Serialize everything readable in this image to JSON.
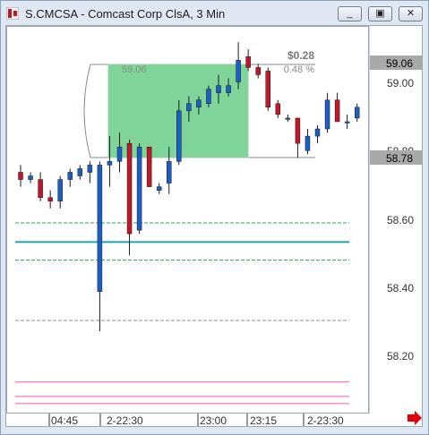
{
  "window": {
    "title": "S.CMCSA - Comcast Corp ClsA, 3 Min",
    "buttons": {
      "minimize": "_",
      "restore": "▣",
      "close": "✕"
    }
  },
  "price_axis": {
    "ticks": [
      "59.00",
      "58.80",
      "58.60",
      "58.40",
      "58.20"
    ],
    "markers": {
      "upper": "59.06",
      "lower": "58.78"
    }
  },
  "time_axis": {
    "ticks": [
      "04:45",
      "2-22:30",
      "23:00",
      "23:15",
      "2-23:30"
    ]
  },
  "measure_tool": {
    "start_price": "59.06",
    "change": "$0.28",
    "change_pct": "0.48 %"
  },
  "colors": {
    "up": "#1c5fc4",
    "down": "#c0172a",
    "measure_fill": "#7fd49a",
    "band_green": "#2ea84f",
    "band_teal": "#1aa7b3",
    "band_pink": "#e85fb1"
  },
  "chart_data": {
    "type": "candlestick",
    "ylim": [
      58.1,
      59.15
    ],
    "candles": [
      {
        "o": 58.76,
        "h": 58.78,
        "l": 58.72,
        "c": 58.74
      },
      {
        "o": 58.74,
        "h": 58.76,
        "l": 58.73,
        "c": 58.75
      },
      {
        "o": 58.74,
        "h": 58.76,
        "l": 58.68,
        "c": 58.69
      },
      {
        "o": 58.69,
        "h": 58.71,
        "l": 58.66,
        "c": 58.68
      },
      {
        "o": 58.68,
        "h": 58.75,
        "l": 58.66,
        "c": 58.74
      },
      {
        "o": 58.74,
        "h": 58.77,
        "l": 58.72,
        "c": 58.76
      },
      {
        "o": 58.75,
        "h": 58.78,
        "l": 58.74,
        "c": 58.77
      },
      {
        "o": 58.76,
        "h": 58.79,
        "l": 58.73,
        "c": 58.78
      },
      {
        "o": 58.43,
        "h": 58.79,
        "l": 58.32,
        "c": 58.78
      },
      {
        "o": 58.78,
        "h": 58.86,
        "l": 58.72,
        "c": 58.79
      },
      {
        "o": 58.79,
        "h": 58.87,
        "l": 58.76,
        "c": 58.83
      },
      {
        "o": 58.84,
        "h": 58.85,
        "l": 58.53,
        "c": 58.59
      },
      {
        "o": 58.6,
        "h": 58.84,
        "l": 58.59,
        "c": 58.83
      },
      {
        "o": 58.83,
        "h": 58.83,
        "l": 58.72,
        "c": 58.72
      },
      {
        "o": 58.71,
        "h": 58.73,
        "l": 58.7,
        "c": 58.72
      },
      {
        "o": 58.73,
        "h": 58.83,
        "l": 58.7,
        "c": 58.79
      },
      {
        "o": 58.79,
        "h": 58.96,
        "l": 58.78,
        "c": 58.93
      },
      {
        "o": 58.93,
        "h": 58.97,
        "l": 58.9,
        "c": 58.95
      },
      {
        "o": 58.94,
        "h": 58.97,
        "l": 58.92,
        "c": 58.96
      },
      {
        "o": 58.95,
        "h": 59.0,
        "l": 58.94,
        "c": 58.99
      },
      {
        "o": 58.98,
        "h": 59.03,
        "l": 58.95,
        "c": 59.0
      },
      {
        "o": 58.98,
        "h": 59.02,
        "l": 58.97,
        "c": 59.0
      },
      {
        "o": 59.01,
        "h": 59.12,
        "l": 58.99,
        "c": 59.07
      },
      {
        "o": 59.08,
        "h": 59.1,
        "l": 59.04,
        "c": 59.05
      },
      {
        "o": 59.05,
        "h": 59.06,
        "l": 59.02,
        "c": 59.03
      },
      {
        "o": 59.04,
        "h": 59.05,
        "l": 58.93,
        "c": 58.94
      },
      {
        "o": 58.95,
        "h": 58.96,
        "l": 58.91,
        "c": 58.92
      },
      {
        "o": 58.91,
        "h": 58.92,
        "l": 58.9,
        "c": 58.91
      },
      {
        "o": 58.91,
        "h": 58.91,
        "l": 58.8,
        "c": 58.84
      },
      {
        "o": 58.82,
        "h": 58.88,
        "l": 58.81,
        "c": 58.86
      },
      {
        "o": 58.86,
        "h": 58.89,
        "l": 58.84,
        "c": 58.88
      },
      {
        "o": 58.88,
        "h": 58.98,
        "l": 58.87,
        "c": 58.96
      },
      {
        "o": 58.96,
        "h": 58.98,
        "l": 58.9,
        "c": 58.9
      },
      {
        "o": 58.9,
        "h": 58.92,
        "l": 58.88,
        "c": 58.9
      },
      {
        "o": 58.91,
        "h": 58.95,
        "l": 58.9,
        "c": 58.94
      }
    ],
    "lines": [
      {
        "name": "band-green-upper",
        "price": 58.62,
        "color": "green",
        "dash": true
      },
      {
        "name": "band-teal-mid",
        "price": 58.567,
        "color": "teal",
        "dash": false
      },
      {
        "name": "band-green-lower",
        "price": 58.517,
        "color": "green",
        "dash": true
      },
      {
        "name": "gray-support",
        "price": 58.35,
        "color": "gray",
        "dash": true
      },
      {
        "name": "pink-1",
        "price": 58.18,
        "color": "pink",
        "dash": false
      },
      {
        "name": "pink-2",
        "price": 58.14,
        "color": "pink",
        "dash": false
      },
      {
        "name": "pink-3",
        "price": 58.12,
        "color": "pink",
        "dash": false
      }
    ]
  }
}
